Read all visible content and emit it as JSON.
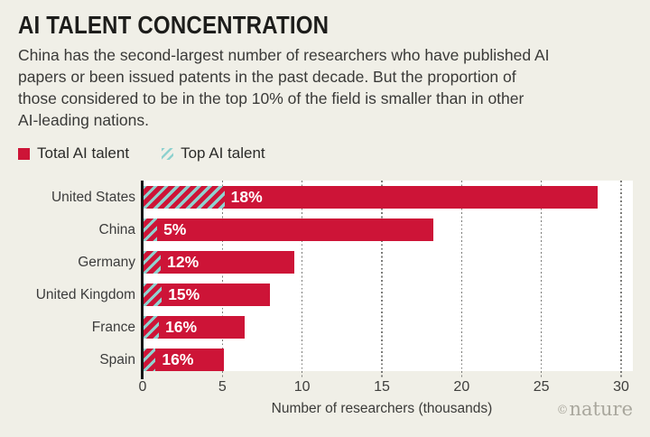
{
  "header": {
    "title": "AI TALENT CONCENTRATION",
    "subtitle_lines": [
      "China has the second-largest number of researchers who have published AI",
      "papers or been issued patents in the past decade. But the proportion of",
      "those considered to be in the top 10% of the field is smaller than in other",
      "AI-leading nations."
    ]
  },
  "legend": {
    "items": [
      {
        "label": "Total AI talent",
        "swatch": "solid-red-square"
      },
      {
        "label": "Top AI talent",
        "swatch": "teal-hatched-square"
      }
    ]
  },
  "colors": {
    "background": "#f0efe7",
    "plot_background": "#ffffff",
    "bar_red": "#cd1437",
    "hatch_teal": "#8fd2cf",
    "axis_black": "#161616",
    "gridline_gray": "#7b7b78",
    "credit_gray": "#a9a79d"
  },
  "chart_data": {
    "type": "bar",
    "orientation": "horizontal",
    "categories": [
      "United States",
      "China",
      "Germany",
      "United Kingdom",
      "France",
      "Spain"
    ],
    "series": [
      {
        "name": "Total AI talent (thousands of researchers)",
        "values": [
          28.5,
          18.2,
          9.5,
          8.0,
          6.4,
          5.1
        ]
      },
      {
        "name": "Top AI talent (% of total)",
        "values": [
          18,
          5,
          12,
          15,
          16,
          16
        ]
      }
    ],
    "bar_labels": [
      "18%",
      "5%",
      "12%",
      "15%",
      "16%",
      "16%"
    ],
    "xlabel": "Number of researchers (thousands)",
    "xticks": [
      0,
      5,
      10,
      15,
      20,
      25,
      30
    ],
    "xlim": [
      0,
      30
    ],
    "grid": "dotted-vertical",
    "legend_position": "top-left"
  },
  "footer": {
    "copyright_symbol": "©",
    "credit": "nature"
  }
}
